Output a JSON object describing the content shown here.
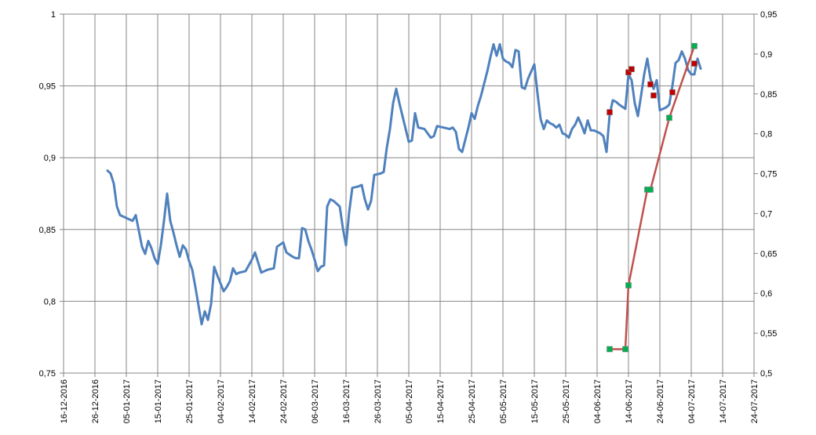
{
  "chart_data": {
    "type": "line",
    "title": "",
    "xlabel": "",
    "ylabel": "",
    "grid": true,
    "legend": "none",
    "x_tick_labels": [
      "16-12-2016",
      "26-12-2016",
      "05-01-2017",
      "15-01-2017",
      "25-01-2017",
      "04-02-2017",
      "14-02-2017",
      "24-02-2017",
      "06-03-2017",
      "16-03-2017",
      "26-03-2017",
      "05-04-2017",
      "15-04-2017",
      "25-04-2017",
      "05-05-2017",
      "15-05-2017",
      "25-05-2017",
      "04-06-2017",
      "14-06-2017",
      "24-06-2017",
      "04-07-2017",
      "14-07-2017",
      "24-07-2017"
    ],
    "xlim": [
      "2016-12-16",
      "2017-07-24"
    ],
    "y_left": {
      "lim": [
        0.75,
        1
      ],
      "ticks": [
        "0,75",
        "0,8",
        "0,85",
        "0,9",
        "0,95",
        "1"
      ]
    },
    "y_right": {
      "lim": [
        0.5,
        0.95
      ],
      "ticks": [
        "0,5",
        "0,55",
        "0,6",
        "0,65",
        "0,7",
        "0,75",
        "0,8",
        "0,85",
        "0,9",
        "0,95"
      ]
    },
    "series": [
      {
        "axis": "left",
        "color": "#4f81bd",
        "marker": "none",
        "points": [
          [
            "2016-12-30",
            0.891
          ],
          [
            "2016-12-31",
            0.889
          ],
          [
            "2017-01-01",
            0.882
          ],
          [
            "2017-01-02",
            0.866
          ],
          [
            "2017-01-03",
            0.86
          ],
          [
            "2017-01-04",
            0.859
          ],
          [
            "2017-01-06",
            0.857
          ],
          [
            "2017-01-07",
            0.856
          ],
          [
            "2017-01-08",
            0.86
          ],
          [
            "2017-01-09",
            0.849
          ],
          [
            "2017-01-10",
            0.838
          ],
          [
            "2017-01-11",
            0.833
          ],
          [
            "2017-01-12",
            0.842
          ],
          [
            "2017-01-13",
            0.837
          ],
          [
            "2017-01-14",
            0.83
          ],
          [
            "2017-01-15",
            0.826
          ],
          [
            "2017-01-16",
            0.839
          ],
          [
            "2017-01-17",
            0.856
          ],
          [
            "2017-01-18",
            0.875
          ],
          [
            "2017-01-19",
            0.856
          ],
          [
            "2017-01-20",
            0.848
          ],
          [
            "2017-01-21",
            0.839
          ],
          [
            "2017-01-22",
            0.831
          ],
          [
            "2017-01-23",
            0.839
          ],
          [
            "2017-01-24",
            0.836
          ],
          [
            "2017-01-25",
            0.828
          ],
          [
            "2017-01-26",
            0.822
          ],
          [
            "2017-01-27",
            0.81
          ],
          [
            "2017-01-28",
            0.797
          ],
          [
            "2017-01-29",
            0.784
          ],
          [
            "2017-01-30",
            0.793
          ],
          [
            "2017-01-31",
            0.787
          ],
          [
            "2017-02-01",
            0.798
          ],
          [
            "2017-02-02",
            0.824
          ],
          [
            "2017-02-03",
            0.818
          ],
          [
            "2017-02-05",
            0.807
          ],
          [
            "2017-02-06",
            0.81
          ],
          [
            "2017-02-07",
            0.814
          ],
          [
            "2017-02-08",
            0.823
          ],
          [
            "2017-02-09",
            0.819
          ],
          [
            "2017-02-10",
            0.82
          ],
          [
            "2017-02-12",
            0.821
          ],
          [
            "2017-02-14",
            0.829
          ],
          [
            "2017-02-15",
            0.834
          ],
          [
            "2017-02-16",
            0.827
          ],
          [
            "2017-02-17",
            0.82
          ],
          [
            "2017-02-19",
            0.822
          ],
          [
            "2017-02-21",
            0.823
          ],
          [
            "2017-02-22",
            0.838
          ],
          [
            "2017-02-24",
            0.841
          ],
          [
            "2017-02-25",
            0.834
          ],
          [
            "2017-02-27",
            0.831
          ],
          [
            "2017-02-28",
            0.83
          ],
          [
            "2017-03-01",
            0.83
          ],
          [
            "2017-03-02",
            0.851
          ],
          [
            "2017-03-03",
            0.85
          ],
          [
            "2017-03-04",
            0.842
          ],
          [
            "2017-03-05",
            0.836
          ],
          [
            "2017-03-06",
            0.829
          ],
          [
            "2017-03-07",
            0.821
          ],
          [
            "2017-03-08",
            0.824
          ],
          [
            "2017-03-09",
            0.825
          ],
          [
            "2017-03-10",
            0.866
          ],
          [
            "2017-03-11",
            0.871
          ],
          [
            "2017-03-12",
            0.87
          ],
          [
            "2017-03-14",
            0.866
          ],
          [
            "2017-03-15",
            0.851
          ],
          [
            "2017-03-16",
            0.839
          ],
          [
            "2017-03-17",
            0.862
          ],
          [
            "2017-03-18",
            0.879
          ],
          [
            "2017-03-20",
            0.88
          ],
          [
            "2017-03-21",
            0.881
          ],
          [
            "2017-03-22",
            0.871
          ],
          [
            "2017-03-23",
            0.864
          ],
          [
            "2017-03-24",
            0.87
          ],
          [
            "2017-03-25",
            0.888
          ],
          [
            "2017-03-27",
            0.889
          ],
          [
            "2017-03-28",
            0.89
          ],
          [
            "2017-03-29",
            0.907
          ],
          [
            "2017-03-30",
            0.92
          ],
          [
            "2017-03-31",
            0.938
          ],
          [
            "2017-04-01",
            0.948
          ],
          [
            "2017-04-02",
            0.938
          ],
          [
            "2017-04-03",
            0.929
          ],
          [
            "2017-04-04",
            0.92
          ],
          [
            "2017-04-05",
            0.911
          ],
          [
            "2017-04-06",
            0.912
          ],
          [
            "2017-04-07",
            0.931
          ],
          [
            "2017-04-08",
            0.921
          ],
          [
            "2017-04-10",
            0.92
          ],
          [
            "2017-04-11",
            0.917
          ],
          [
            "2017-04-12",
            0.914
          ],
          [
            "2017-04-13",
            0.915
          ],
          [
            "2017-04-14",
            0.922
          ],
          [
            "2017-04-16",
            0.921
          ],
          [
            "2017-04-18",
            0.92
          ],
          [
            "2017-04-19",
            0.921
          ],
          [
            "2017-04-20",
            0.918
          ],
          [
            "2017-04-21",
            0.906
          ],
          [
            "2017-04-22",
            0.904
          ],
          [
            "2017-04-24",
            0.921
          ],
          [
            "2017-04-25",
            0.931
          ],
          [
            "2017-04-26",
            0.927
          ],
          [
            "2017-04-27",
            0.936
          ],
          [
            "2017-04-28",
            0.943
          ],
          [
            "2017-04-30",
            0.96
          ],
          [
            "2017-05-01",
            0.97
          ],
          [
            "2017-05-02",
            0.979
          ],
          [
            "2017-05-03",
            0.971
          ],
          [
            "2017-05-04",
            0.979
          ],
          [
            "2017-05-05",
            0.969
          ],
          [
            "2017-05-06",
            0.967
          ],
          [
            "2017-05-07",
            0.966
          ],
          [
            "2017-05-08",
            0.963
          ],
          [
            "2017-05-09",
            0.975
          ],
          [
            "2017-05-10",
            0.974
          ],
          [
            "2017-05-11",
            0.949
          ],
          [
            "2017-05-12",
            0.948
          ],
          [
            "2017-05-13",
            0.955
          ],
          [
            "2017-05-15",
            0.965
          ],
          [
            "2017-05-16",
            0.945
          ],
          [
            "2017-05-17",
            0.927
          ],
          [
            "2017-05-18",
            0.92
          ],
          [
            "2017-05-19",
            0.926
          ],
          [
            "2017-05-20",
            0.924
          ],
          [
            "2017-05-21",
            0.923
          ],
          [
            "2017-05-22",
            0.921
          ],
          [
            "2017-05-23",
            0.923
          ],
          [
            "2017-05-24",
            0.917
          ],
          [
            "2017-05-25",
            0.916
          ],
          [
            "2017-05-26",
            0.914
          ],
          [
            "2017-05-27",
            0.92
          ],
          [
            "2017-05-28",
            0.923
          ],
          [
            "2017-05-29",
            0.928
          ],
          [
            "2017-05-30",
            0.923
          ],
          [
            "2017-05-31",
            0.917
          ],
          [
            "2017-06-01",
            0.926
          ],
          [
            "2017-06-02",
            0.919
          ],
          [
            "2017-06-03",
            0.919
          ],
          [
            "2017-06-04",
            0.918
          ],
          [
            "2017-06-05",
            0.917
          ],
          [
            "2017-06-06",
            0.915
          ],
          [
            "2017-06-07",
            0.904
          ],
          [
            "2017-06-08",
            0.93
          ],
          [
            "2017-06-09",
            0.94
          ],
          [
            "2017-06-10",
            0.939
          ],
          [
            "2017-06-11",
            0.937
          ],
          [
            "2017-06-13",
            0.934
          ],
          [
            "2017-06-14",
            0.958
          ],
          [
            "2017-06-15",
            0.954
          ],
          [
            "2017-06-16",
            0.938
          ],
          [
            "2017-06-17",
            0.929
          ],
          [
            "2017-06-18",
            0.943
          ],
          [
            "2017-06-19",
            0.958
          ],
          [
            "2017-06-20",
            0.969
          ],
          [
            "2017-06-21",
            0.955
          ],
          [
            "2017-06-22",
            0.948
          ],
          [
            "2017-06-23",
            0.954
          ],
          [
            "2017-06-24",
            0.933
          ],
          [
            "2017-06-25",
            0.934
          ],
          [
            "2017-06-26",
            0.935
          ],
          [
            "2017-06-27",
            0.937
          ],
          [
            "2017-06-28",
            0.95
          ],
          [
            "2017-06-29",
            0.966
          ],
          [
            "2017-06-30",
            0.968
          ],
          [
            "2017-07-01",
            0.974
          ],
          [
            "2017-07-02",
            0.969
          ],
          [
            "2017-07-03",
            0.961
          ],
          [
            "2017-07-04",
            0.958
          ],
          [
            "2017-07-05",
            0.958
          ],
          [
            "2017-07-06",
            0.969
          ],
          [
            "2017-07-07",
            0.962
          ]
        ]
      },
      {
        "axis": "right",
        "color": "#c0504d",
        "marker": "square",
        "marker_color": "#00b050",
        "points": [
          [
            "2017-06-08",
            0.53
          ],
          [
            "2017-06-13",
            0.53
          ],
          [
            "2017-06-14",
            0.61
          ],
          [
            "2017-06-20",
            0.73
          ],
          [
            "2017-06-21",
            0.73
          ],
          [
            "2017-06-27",
            0.82
          ],
          [
            "2017-07-05",
            0.91
          ]
        ]
      },
      {
        "axis": "right",
        "line": false,
        "marker": "square",
        "marker_color": "#c00000",
        "points": [
          [
            "2017-06-08",
            0.827
          ],
          [
            "2017-06-14",
            0.877
          ],
          [
            "2017-06-15",
            0.881
          ],
          [
            "2017-06-21",
            0.862
          ],
          [
            "2017-06-22",
            0.848
          ],
          [
            "2017-06-28",
            0.852
          ],
          [
            "2017-07-05",
            0.888
          ]
        ]
      }
    ]
  }
}
